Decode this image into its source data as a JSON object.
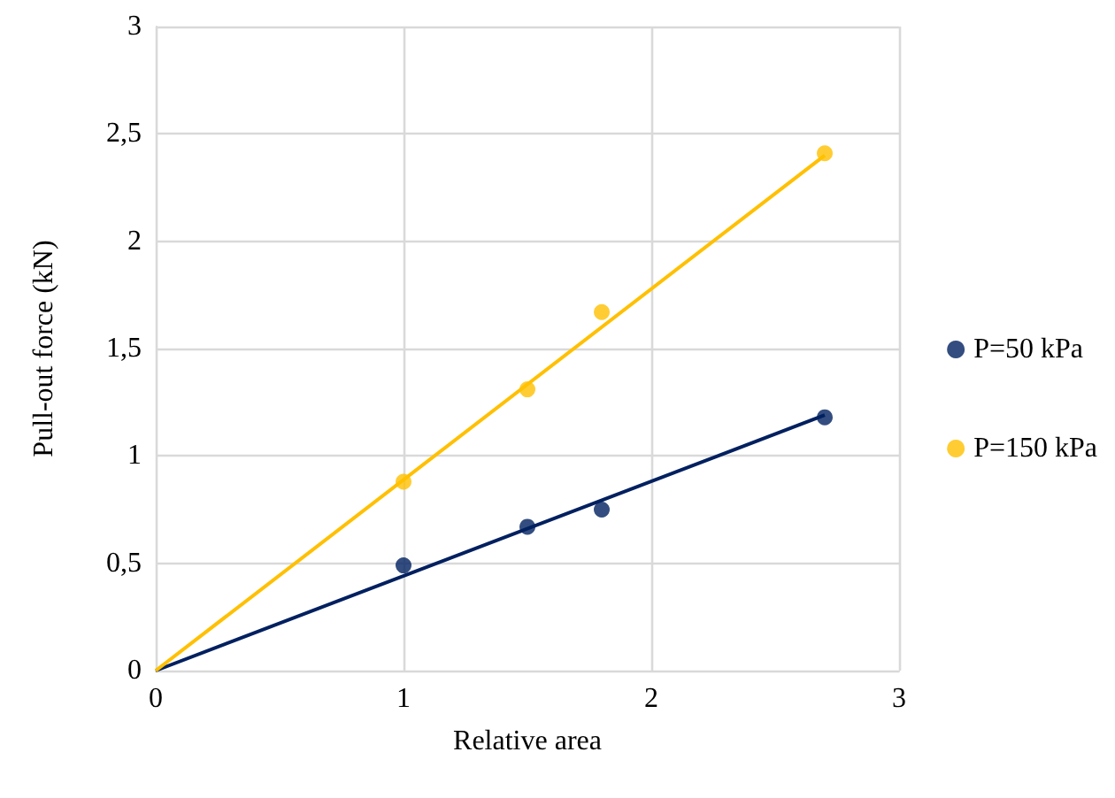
{
  "chart_data": {
    "type": "scatter",
    "xlabel": "Relative area",
    "ylabel": "Pull-out force (kN)",
    "series": [
      {
        "name": "P=50 kPa",
        "color": "#002060",
        "x": [
          1,
          1.5,
          1.8,
          2.7
        ],
        "values": [
          0.49,
          0.67,
          0.75,
          1.18
        ],
        "marker": "circle"
      },
      {
        "name": "P=150 kPa",
        "color": "#ffc000",
        "x": [
          1,
          1.5,
          1.8,
          2.7
        ],
        "values": [
          0.88,
          1.31,
          1.67,
          2.41
        ],
        "marker": "circle"
      },
      {
        "type": "line",
        "color": "#002060",
        "x": [
          0,
          2.7
        ],
        "values": [
          0,
          1.19
        ],
        "marker": "none"
      },
      {
        "type": "line",
        "color": "#ffc000",
        "x": [
          0,
          2.7
        ],
        "values": [
          0,
          2.4
        ],
        "marker": "none"
      }
    ],
    "xlim": [
      0,
      3
    ],
    "xticks": [
      0,
      1,
      2,
      3
    ],
    "ylim": [
      0,
      3
    ],
    "yticks": [
      0,
      {
        "value": 0.5,
        "label": "0,5"
      },
      1,
      {
        "value": 1.5,
        "label": "1,5"
      },
      2,
      {
        "value": 2.5,
        "label": "2,5"
      },
      3
    ],
    "grid": true,
    "legend": "right"
  }
}
